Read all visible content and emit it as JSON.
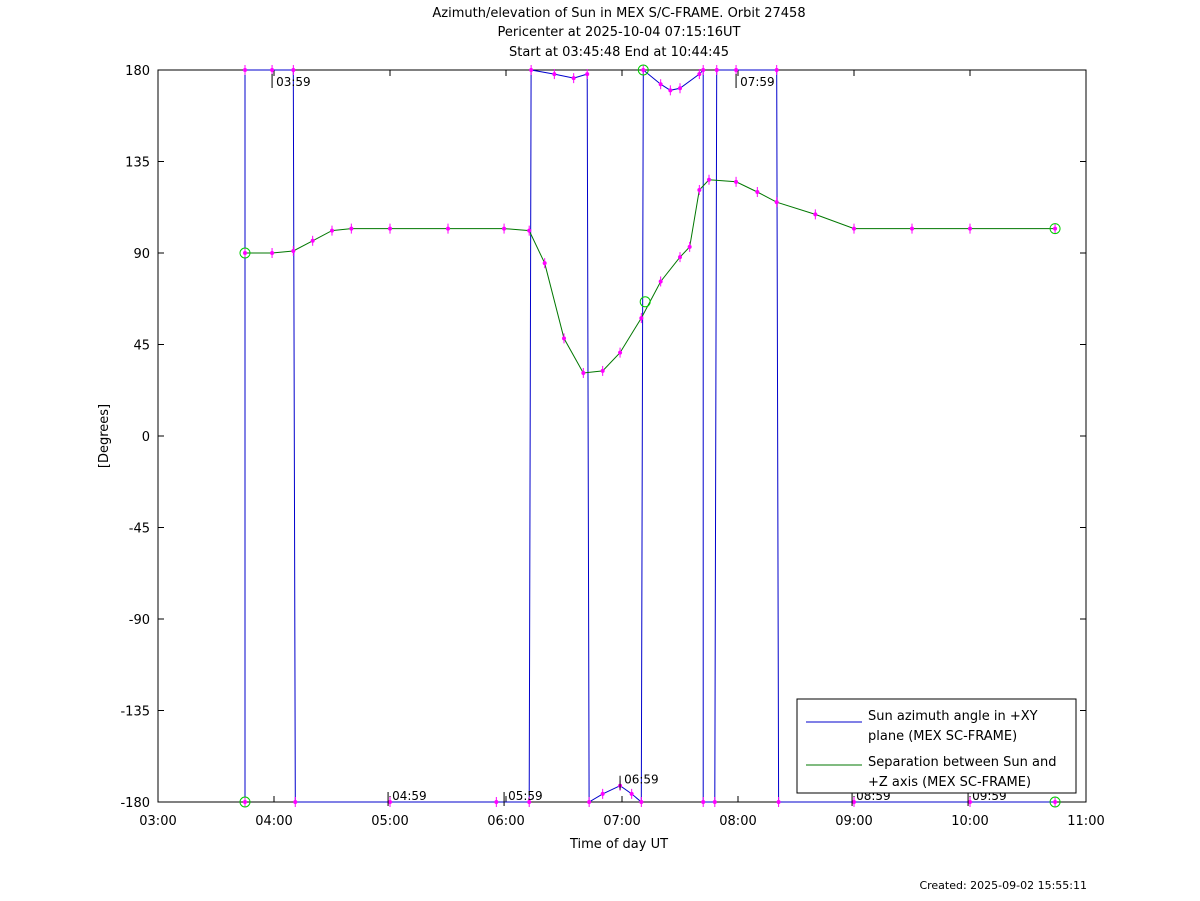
{
  "chart_data": {
    "type": "line",
    "title": "Azimuth/elevation of Sun in MEX S/C-FRAME.  Orbit 27458",
    "subtitle_1": "Pericenter at 2025-10-04 07:15:16UT",
    "subtitle_2": "Start at 03:45:48 End at 10:44:45",
    "xlabel": "Time of day UT",
    "ylabel": "[Degrees]",
    "xlim": [
      "03:00",
      "11:00"
    ],
    "ylim": [
      -180,
      180
    ],
    "x_ticks": [
      "03:00",
      "04:00",
      "05:00",
      "06:00",
      "07:00",
      "08:00",
      "09:00",
      "10:00",
      "11:00"
    ],
    "y_ticks": [
      "180",
      "135",
      "90",
      "45",
      "0",
      "-45",
      "-90",
      "-135",
      "-180"
    ],
    "legend_position": "bottom-right",
    "grid": false,
    "time_annotations": [
      "03:59",
      "04:59",
      "05:59",
      "06:59",
      "07:59",
      "08:59",
      "09:59"
    ],
    "series": [
      {
        "name": "Sun azimuth angle in +XY plane (MEX SC-FRAME)",
        "color": "#0000cc",
        "points": [
          [
            "03:45",
            -180
          ],
          [
            "03:45",
            180
          ],
          [
            "03:59",
            180
          ],
          [
            "04:10",
            180
          ],
          [
            "04:11",
            -180
          ],
          [
            "05:00",
            -180
          ],
          [
            "05:55",
            -180
          ],
          [
            "06:12",
            -180
          ],
          [
            "06:13",
            180
          ],
          [
            "06:25",
            178
          ],
          [
            "06:35",
            176
          ],
          [
            "06:42",
            178
          ],
          [
            "06:43",
            -180
          ],
          [
            "06:50",
            -176
          ],
          [
            "06:59",
            -172
          ],
          [
            "07:05",
            -176
          ],
          [
            "07:10",
            -180
          ],
          [
            "07:11",
            180
          ],
          [
            "07:20",
            173
          ],
          [
            "07:25",
            170
          ],
          [
            "07:30",
            171
          ],
          [
            "07:40",
            178
          ],
          [
            "07:42",
            180
          ],
          [
            "07:42",
            -180
          ],
          [
            "07:48",
            -180
          ],
          [
            "07:49",
            180
          ],
          [
            "07:59",
            180
          ],
          [
            "08:20",
            180
          ],
          [
            "08:21",
            -180
          ],
          [
            "09:00",
            -180
          ],
          [
            "10:00",
            -180
          ],
          [
            "10:44",
            -180
          ]
        ]
      },
      {
        "name": "Separation between Sun and +Z axis (MEX SC-FRAME)",
        "color": "#007700",
        "points": [
          [
            "03:45",
            90
          ],
          [
            "03:59",
            90
          ],
          [
            "04:10",
            91
          ],
          [
            "04:20",
            96
          ],
          [
            "04:30",
            101
          ],
          [
            "04:40",
            102
          ],
          [
            "05:00",
            102
          ],
          [
            "05:30",
            102
          ],
          [
            "05:59",
            102
          ],
          [
            "06:12",
            101
          ],
          [
            "06:20",
            85
          ],
          [
            "06:30",
            48
          ],
          [
            "06:40",
            31
          ],
          [
            "06:50",
            32
          ],
          [
            "06:59",
            41
          ],
          [
            "07:10",
            58
          ],
          [
            "07:20",
            76
          ],
          [
            "07:30",
            88
          ],
          [
            "07:35",
            93
          ],
          [
            "07:40",
            121
          ],
          [
            "07:45",
            126
          ],
          [
            "07:59",
            125
          ],
          [
            "08:10",
            120
          ],
          [
            "08:20",
            115
          ],
          [
            "08:40",
            109
          ],
          [
            "09:00",
            102
          ],
          [
            "09:30",
            102
          ],
          [
            "10:00",
            102
          ],
          [
            "10:44",
            102
          ]
        ]
      }
    ]
  },
  "footer": {
    "created": "Created: 2025-09-02 15:55:11"
  }
}
